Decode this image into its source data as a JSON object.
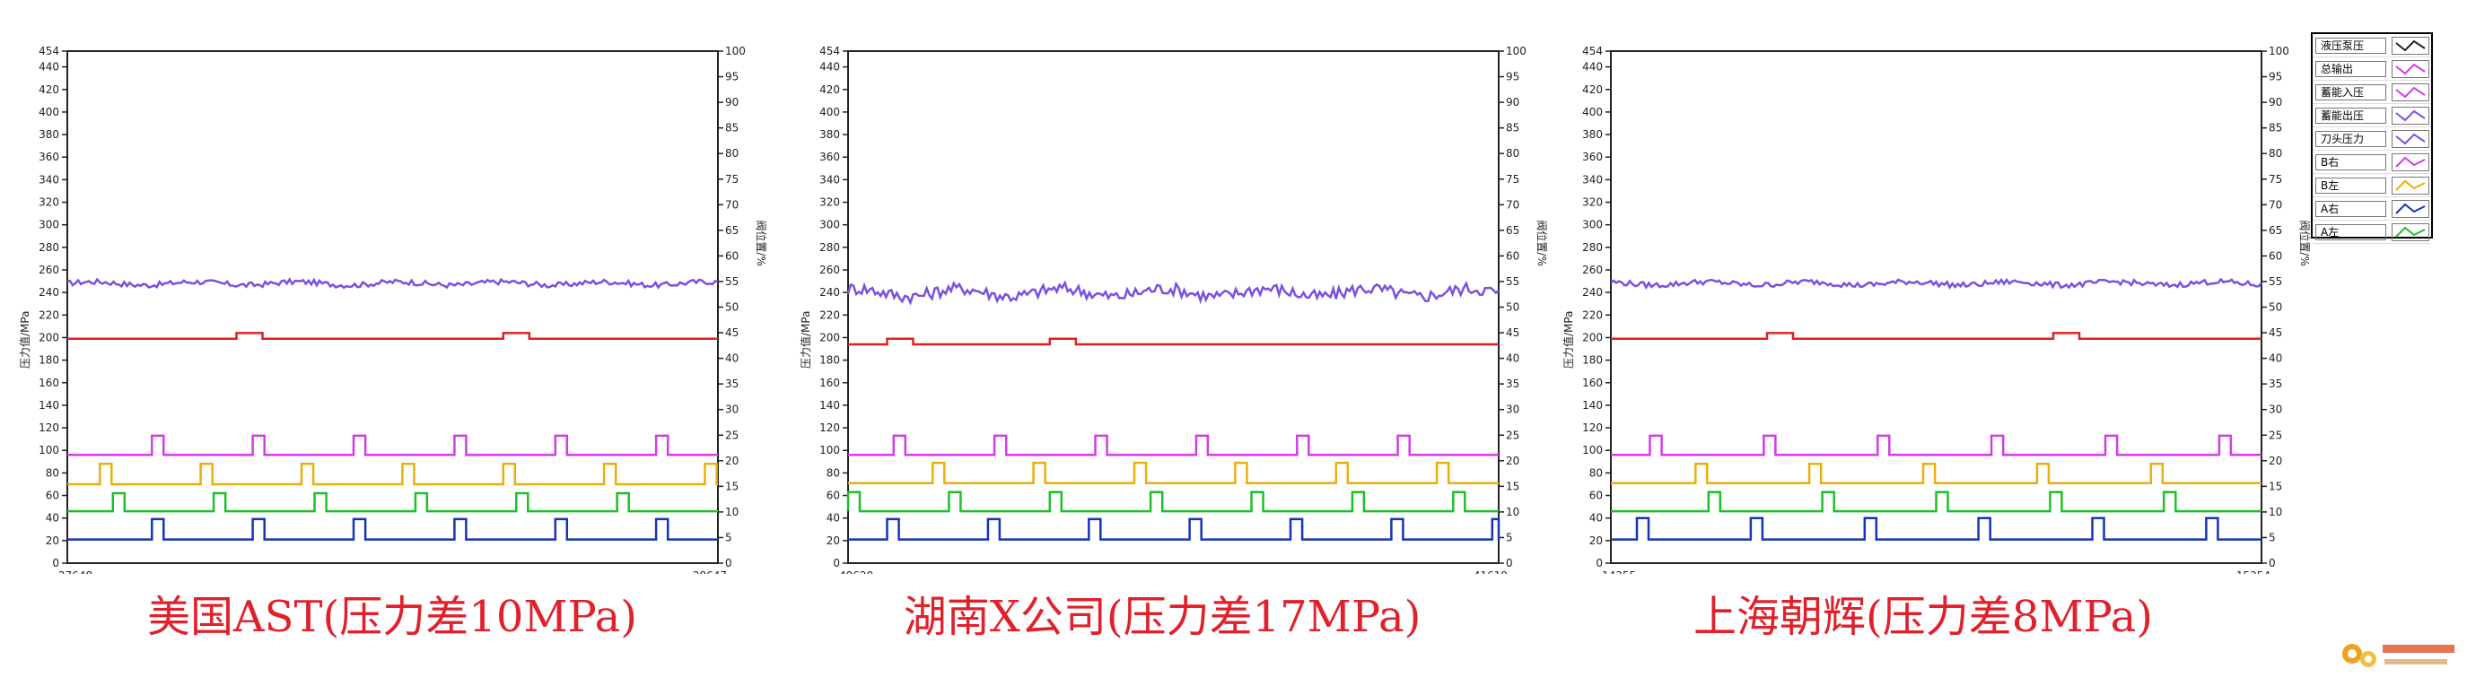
{
  "colors": {
    "accumulator_a": "#7b50e0",
    "accumulator_b": "#e02020",
    "b_right": "#d23ce6",
    "b_left": "#e8b00a",
    "a_right": "#1533b8",
    "a_left": "#1dbf2a",
    "caption": "#e0202a"
  },
  "legend": {
    "items": [
      {
        "label": "液压泵压",
        "color": "#222222",
        "shape": "v"
      },
      {
        "label": "总输出",
        "color": "#d23ce6",
        "shape": "v"
      },
      {
        "label": "蓄能入压",
        "color": "#d23ce6",
        "shape": "v"
      },
      {
        "label": "蓄能出压",
        "color": "#7b50e0",
        "shape": "v"
      },
      {
        "label": "刀头压力",
        "color": "#7b50e0",
        "shape": "v"
      },
      {
        "label": "B右",
        "color": "#d23ce6",
        "shape": "wave"
      },
      {
        "label": "B左",
        "color": "#e8b00a",
        "shape": "wave"
      },
      {
        "label": "A右",
        "color": "#1533b8",
        "shape": "wave"
      },
      {
        "label": "A左",
        "color": "#1dbf2a",
        "shape": "wave"
      }
    ]
  },
  "chart_data": [
    {
      "type": "line",
      "caption": "美国AST(压力差10MPa)",
      "ylabel_left": "压力值/MPa",
      "ylabel_right": "阀位置/%",
      "y_left": {
        "min": 0,
        "max": 454,
        "ticks": [
          0,
          20,
          40,
          60,
          80,
          100,
          120,
          140,
          160,
          180,
          200,
          220,
          240,
          260,
          280,
          300,
          320,
          340,
          360,
          380,
          400,
          420,
          440,
          454
        ]
      },
      "y_right": {
        "min": 0,
        "max": 100,
        "ticks": [
          0,
          5,
          10,
          15,
          20,
          25,
          30,
          35,
          40,
          45,
          50,
          55,
          60,
          65,
          70,
          75,
          80,
          85,
          90,
          95,
          100
        ]
      },
      "x": {
        "start": "27648",
        "end": "28647"
      },
      "series": [
        {
          "key": "upper",
          "color": "#7b50e0",
          "level": 248,
          "noise": 3
        },
        {
          "key": "lower",
          "color": "#e02020",
          "level": 199,
          "bumps": [
            [
              0.26,
              0.3,
              204
            ],
            [
              0.67,
              0.71,
              204
            ]
          ]
        },
        {
          "key": "b_right",
          "color": "#d23ce6",
          "level": 96,
          "high": 113,
          "period": 0.155,
          "offset": 0.13,
          "width": 0.018
        },
        {
          "key": "b_left",
          "color": "#e8b00a",
          "level": 70,
          "high": 88,
          "period": 0.155,
          "offset": 0.05,
          "width": 0.018
        },
        {
          "key": "a_left",
          "color": "#1dbf2a",
          "level": 46,
          "high": 62,
          "period": 0.155,
          "offset": 0.07,
          "width": 0.018
        },
        {
          "key": "a_right",
          "color": "#1533b8",
          "level": 21,
          "high": 39,
          "period": 0.155,
          "offset": 0.13,
          "width": 0.018
        }
      ]
    },
    {
      "type": "line",
      "caption": "湖南X公司(压力差17MPa)",
      "ylabel_left": "压力值/MPa",
      "ylabel_right": "阀位置/%",
      "y_left": {
        "min": 0,
        "max": 454,
        "ticks": [
          0,
          20,
          40,
          60,
          80,
          100,
          120,
          140,
          160,
          180,
          200,
          220,
          240,
          260,
          280,
          300,
          320,
          340,
          360,
          380,
          400,
          420,
          440,
          454
        ]
      },
      "y_right": {
        "min": 0,
        "max": 100,
        "ticks": [
          0,
          5,
          10,
          15,
          20,
          25,
          30,
          35,
          40,
          45,
          50,
          55,
          60,
          65,
          70,
          75,
          80,
          85,
          90,
          95,
          100
        ]
      },
      "x": {
        "start": "40620",
        "end": "41619"
      },
      "series": [
        {
          "key": "upper",
          "color": "#7b50e0",
          "level": 240,
          "noise": 7
        },
        {
          "key": "lower",
          "color": "#e02020",
          "level": 194,
          "bumps": [
            [
              0.06,
              0.1,
              199
            ],
            [
              0.31,
              0.35,
              199
            ]
          ]
        },
        {
          "key": "b_right",
          "color": "#d23ce6",
          "level": 96,
          "high": 113,
          "period": 0.155,
          "offset": 0.07,
          "width": 0.018
        },
        {
          "key": "b_left",
          "color": "#e8b00a",
          "level": 71,
          "high": 89,
          "period": 0.155,
          "offset": 0.13,
          "width": 0.018
        },
        {
          "key": "a_left",
          "color": "#1dbf2a",
          "level": 46,
          "high": 63,
          "period": 0.155,
          "offset": 0.0,
          "width": 0.018
        },
        {
          "key": "a_right",
          "color": "#1533b8",
          "level": 21,
          "high": 39,
          "period": 0.155,
          "offset": 0.06,
          "width": 0.018
        }
      ]
    },
    {
      "type": "line",
      "caption": "上海朝辉(压力差8MPa)",
      "ylabel_left": "压力值/MPa",
      "ylabel_right": "阀位置/%",
      "y_left": {
        "min": 0,
        "max": 454,
        "ticks": [
          0,
          20,
          40,
          60,
          80,
          100,
          120,
          140,
          160,
          180,
          200,
          220,
          240,
          260,
          280,
          300,
          320,
          340,
          360,
          380,
          400,
          420,
          440,
          454
        ]
      },
      "y_right": {
        "min": 0,
        "max": 100,
        "ticks": [
          0,
          5,
          10,
          15,
          20,
          25,
          30,
          35,
          40,
          45,
          50,
          55,
          60,
          65,
          70,
          75,
          80,
          85,
          90,
          95,
          100
        ]
      },
      "x": {
        "start": "14355",
        "end": "15354"
      },
      "series": [
        {
          "key": "upper",
          "color": "#7b50e0",
          "level": 248,
          "noise": 3
        },
        {
          "key": "lower",
          "color": "#e02020",
          "level": 199,
          "bumps": [
            [
              0.24,
              0.28,
              204
            ],
            [
              0.68,
              0.72,
              204
            ]
          ]
        },
        {
          "key": "b_right",
          "color": "#d23ce6",
          "level": 96,
          "high": 113,
          "period": 0.175,
          "offset": 0.06,
          "width": 0.018
        },
        {
          "key": "b_left",
          "color": "#e8b00a",
          "level": 71,
          "high": 88,
          "period": 0.175,
          "offset": 0.13,
          "width": 0.018
        },
        {
          "key": "a_left",
          "color": "#1dbf2a",
          "level": 46,
          "high": 63,
          "period": 0.175,
          "offset": 0.15,
          "width": 0.018
        },
        {
          "key": "a_right",
          "color": "#1533b8",
          "level": 21,
          "high": 40,
          "period": 0.175,
          "offset": 0.04,
          "width": 0.018
        }
      ]
    }
  ]
}
